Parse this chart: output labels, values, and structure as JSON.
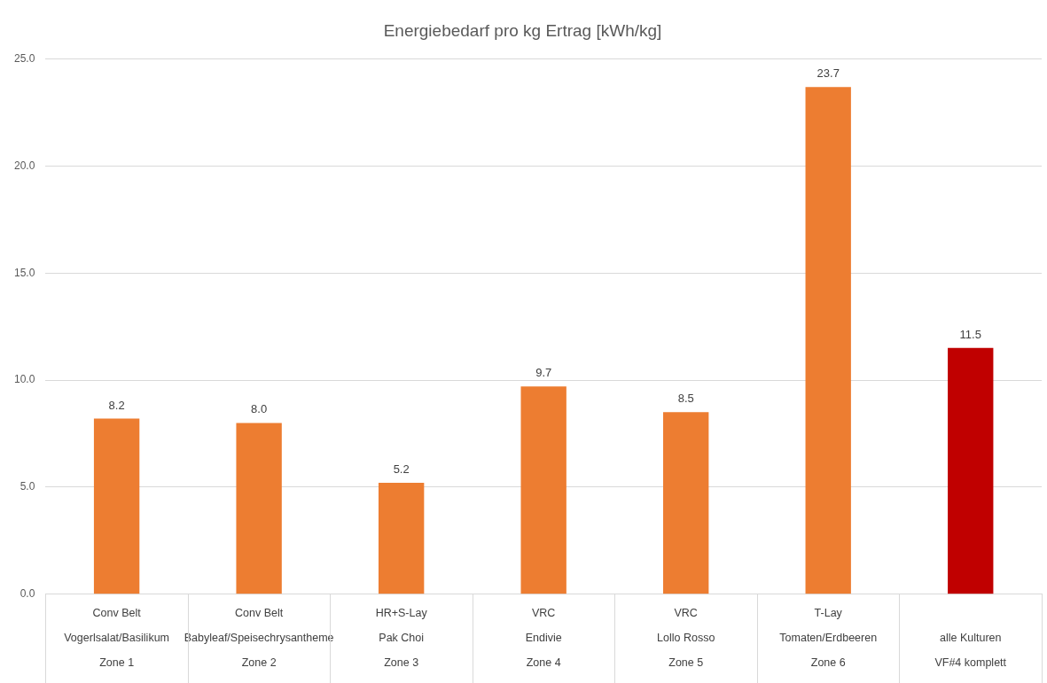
{
  "chart_data": {
    "type": "bar",
    "title": "Energiebedarf pro kg Ertrag [kWh/kg]",
    "categories": [
      "Conv Belt\nVogerlsalat/Basilikum\nZone 1",
      "Conv Belt\nBabyleaf/Speisechrysantheme\nZone 2",
      "HR+S-Lay\nPak Choi\nZone 3",
      "VRC\nEndivie\nZone 4",
      "VRC\nLollo Rosso\nZone 5",
      "T-Lay\nTomaten/Erdbeeren\nZone 6",
      "\nalle Kulturen\nVF#4 komplett"
    ],
    "values": [
      8.2,
      8.0,
      5.2,
      9.7,
      8.5,
      23.7,
      11.5
    ],
    "value_labels": [
      "8.2",
      "8.0",
      "5.2",
      "9.7",
      "8.5",
      "23.7",
      "11.5"
    ],
    "colors": [
      "#ed7d31",
      "#ed7d31",
      "#ed7d31",
      "#ed7d31",
      "#ed7d31",
      "#ed7d31",
      "#c00000"
    ],
    "ylim": [
      0,
      25
    ],
    "yticks": [
      {
        "value": 0,
        "label": "0.0"
      },
      {
        "value": 5,
        "label": "5.0"
      },
      {
        "value": 10,
        "label": "10.0"
      },
      {
        "value": 15,
        "label": "15.0"
      },
      {
        "value": 20,
        "label": "20.0"
      },
      {
        "value": 25,
        "label": "25.0"
      }
    ],
    "grid": "y",
    "legend": false
  }
}
